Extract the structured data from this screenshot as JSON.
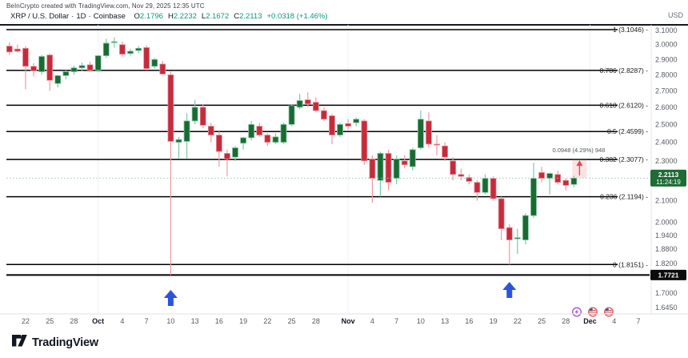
{
  "header": {
    "attribution": "BeInCrypto created with TradingView.com, Nov 29, 2025 12:35 UTC",
    "symbol_title": "XRP / U.S. Dollar",
    "interval": "1D",
    "exchange": "Coinbase",
    "o_label": "O",
    "o_value": "2.1796",
    "h_label": "H",
    "h_value": "2.2232",
    "l_label": "L",
    "l_value": "2.1672",
    "c_label": "C",
    "c_value": "2.2113",
    "change": "+0.0318 (+1.46%)",
    "currency_label": "USD"
  },
  "footer": {
    "logo_text": "TradingView"
  },
  "colors": {
    "up_body": "#1a6b33",
    "up_wick": "#7cc8a8",
    "up_border": "#7cc39b",
    "down_body": "#c62b3c",
    "down_wick": "#f0989f",
    "down_border": "#e9939d",
    "fib_line": "#000000",
    "fib_text": "#1a1a1a",
    "axis_text": "#555a63",
    "month_text": "#131722",
    "price_badge_bg": "#1e6b35",
    "level_badge_bg": "#0c0c0c",
    "dotted_price_line": "#9ccbad",
    "blue_arrow": "#2b54dd",
    "measure_fill": "rgba(239,83,80,0.16)",
    "measure_arrow": "#e24a52",
    "measure_text": "#55585f",
    "event_purple": "#a34fd4",
    "event_flag_red": "#e05c5c",
    "event_flag_blue": "#3557b0"
  },
  "chart_data": {
    "type": "candlestick",
    "title": "XRP / U.S. Dollar",
    "interval": "1D",
    "exchange": "Coinbase",
    "price_scale": "log",
    "ylim": [
      1.6,
      3.15
    ],
    "fib_levels": [
      {
        "level": "1",
        "price": "3.1046"
      },
      {
        "level": "0.786",
        "price": "2.8287"
      },
      {
        "level": "0.618",
        "price": "2.6120"
      },
      {
        "level": "0.5",
        "price": "2.4599"
      },
      {
        "level": "0.382",
        "price": "2.3077"
      },
      {
        "level": "0.236",
        "price": "2.1194"
      },
      {
        "level": "0",
        "price": "1.8151"
      }
    ],
    "horizontal_level": {
      "price": "1.7721"
    },
    "last_price": {
      "value": "2.2113",
      "countdown": "11:24:19"
    },
    "measure_annotation": {
      "text": "0.0948 (4.29%) 948",
      "from_price": 2.2129,
      "to_price": 2.3077,
      "bar": 70
    },
    "price_axis_ticks": [
      "3.1000",
      "3.0000",
      "2.9000",
      "2.8000",
      "2.7000",
      "2.6000",
      "2.5000",
      "2.4000",
      "2.3000",
      "2.1000",
      "2.0000",
      "1.9400",
      "1.8800",
      "1.8200",
      "1.7000",
      "1.6450"
    ],
    "time_axis_ticks": [
      {
        "label": "22",
        "bar": 2
      },
      {
        "label": "25",
        "bar": 5
      },
      {
        "label": "28",
        "bar": 8
      },
      {
        "label": "Oct",
        "bar": 11,
        "bold": true
      },
      {
        "label": "4",
        "bar": 14
      },
      {
        "label": "7",
        "bar": 17
      },
      {
        "label": "10",
        "bar": 20
      },
      {
        "label": "13",
        "bar": 23
      },
      {
        "label": "16",
        "bar": 26
      },
      {
        "label": "19",
        "bar": 29
      },
      {
        "label": "22",
        "bar": 32
      },
      {
        "label": "25",
        "bar": 35
      },
      {
        "label": "28",
        "bar": 38
      },
      {
        "label": "Nov",
        "bar": 42,
        "bold": true
      },
      {
        "label": "4",
        "bar": 45
      },
      {
        "label": "7",
        "bar": 48
      },
      {
        "label": "10",
        "bar": 51
      },
      {
        "label": "13",
        "bar": 54
      },
      {
        "label": "16",
        "bar": 57
      },
      {
        "label": "19",
        "bar": 60
      },
      {
        "label": "22",
        "bar": 63
      },
      {
        "label": "25",
        "bar": 66
      },
      {
        "label": "28",
        "bar": 69
      },
      {
        "label": "Dec",
        "bar": 72,
        "bold": true
      },
      {
        "label": "4",
        "bar": 75
      },
      {
        "label": "7",
        "bar": 78
      }
    ],
    "signal_arrows": [
      {
        "bar": 20,
        "top_y": 362,
        "date": "Oct 10"
      },
      {
        "bar": 62,
        "top_y": 352,
        "date": "Nov 21"
      }
    ],
    "event_markers": [
      {
        "type": "crypto-event",
        "x": 721
      },
      {
        "type": "us-flag-event",
        "x": 741
      },
      {
        "type": "us-flag-event",
        "x": 761
      }
    ],
    "candle_columns": [
      "date",
      "open",
      "high",
      "low",
      "close"
    ],
    "candles": [
      [
        "Sep 20",
        2.99,
        3.015,
        2.93,
        2.95
      ],
      [
        "Sep 21",
        2.97,
        3.0,
        2.945,
        2.955
      ],
      [
        "Sep 22",
        2.975,
        2.99,
        2.71,
        2.855
      ],
      [
        "Sep 23",
        2.855,
        2.875,
        2.79,
        2.825
      ],
      [
        "Sep 24",
        2.82,
        2.93,
        2.8,
        2.92
      ],
      [
        "Sep 25",
        2.93,
        2.94,
        2.7,
        2.765
      ],
      [
        "Sep 26",
        2.745,
        2.8,
        2.72,
        2.795
      ],
      [
        "Sep 27",
        2.795,
        2.83,
        2.77,
        2.82
      ],
      [
        "Sep 28",
        2.82,
        2.86,
        2.8,
        2.845
      ],
      [
        "Sep 29",
        2.845,
        2.88,
        2.825,
        2.86
      ],
      [
        "Sep 30",
        2.865,
        2.885,
        2.82,
        2.83
      ],
      [
        "Oct 1",
        2.83,
        2.93,
        2.82,
        2.925
      ],
      [
        "Oct 2",
        2.925,
        3.04,
        2.91,
        3.01
      ],
      [
        "Oct 3",
        3.015,
        3.05,
        2.98,
        3.02
      ],
      [
        "Oct 4",
        3.0,
        3.02,
        2.92,
        2.935
      ],
      [
        "Oct 5",
        2.94,
        2.97,
        2.925,
        2.955
      ],
      [
        "Oct 6",
        2.96,
        2.99,
        2.94,
        2.975
      ],
      [
        "Oct 7",
        2.98,
        2.995,
        2.83,
        2.84
      ],
      [
        "Oct 8",
        2.855,
        2.91,
        2.84,
        2.9
      ],
      [
        "Oct 9",
        2.87,
        2.89,
        2.8,
        2.805
      ],
      [
        "Oct 10",
        2.8,
        2.82,
        1.7721,
        2.405
      ],
      [
        "Oct 11",
        2.4,
        2.43,
        2.31,
        2.415
      ],
      [
        "Oct 12",
        2.405,
        2.565,
        2.31,
        2.52
      ],
      [
        "Oct 13",
        2.52,
        2.645,
        2.5,
        2.6
      ],
      [
        "Oct 14",
        2.6,
        2.62,
        2.48,
        2.495
      ],
      [
        "Oct 15",
        2.49,
        2.51,
        2.4,
        2.44
      ],
      [
        "Oct 16",
        2.44,
        2.46,
        2.27,
        2.35
      ],
      [
        "Oct 17",
        2.34,
        2.36,
        2.22,
        2.31
      ],
      [
        "Oct 18",
        2.32,
        2.38,
        2.3,
        2.37
      ],
      [
        "Oct 19",
        2.395,
        2.43,
        2.36,
        2.425
      ],
      [
        "Oct 20",
        2.425,
        2.52,
        2.41,
        2.5
      ],
      [
        "Oct 21",
        2.49,
        2.51,
        2.43,
        2.44
      ],
      [
        "Oct 22",
        2.44,
        2.45,
        2.38,
        2.4
      ],
      [
        "Oct 23",
        2.4,
        2.45,
        2.39,
        2.43
      ],
      [
        "Oct 24",
        2.4,
        2.51,
        2.39,
        2.5
      ],
      [
        "Oct 25",
        2.5,
        2.62,
        2.49,
        2.61
      ],
      [
        "Oct 26",
        2.6,
        2.68,
        2.59,
        2.64
      ],
      [
        "Oct 27",
        2.645,
        2.69,
        2.6,
        2.62
      ],
      [
        "Oct 28",
        2.63,
        2.66,
        2.57,
        2.58
      ],
      [
        "Oct 29",
        2.58,
        2.6,
        2.52,
        2.53
      ],
      [
        "Oct 30",
        2.55,
        2.56,
        2.39,
        2.44
      ],
      [
        "Oct 31",
        2.44,
        2.51,
        2.43,
        2.5
      ],
      [
        "Nov 1",
        2.505,
        2.53,
        2.47,
        2.49
      ],
      [
        "Nov 2",
        2.51,
        2.54,
        2.49,
        2.53
      ],
      [
        "Nov 3",
        2.52,
        2.53,
        2.28,
        2.3
      ],
      [
        "Nov 4",
        2.31,
        2.33,
        2.09,
        2.21
      ],
      [
        "Nov 5",
        2.2,
        2.35,
        2.12,
        2.34
      ],
      [
        "Nov 6",
        2.34,
        2.36,
        2.15,
        2.19
      ],
      [
        "Nov 7",
        2.21,
        2.33,
        2.18,
        2.31
      ],
      [
        "Nov 8",
        2.3,
        2.33,
        2.26,
        2.28
      ],
      [
        "Nov 9",
        2.27,
        2.37,
        2.25,
        2.36
      ],
      [
        "Nov 10",
        2.37,
        2.58,
        2.36,
        2.53
      ],
      [
        "Nov 11",
        2.52,
        2.57,
        2.37,
        2.39
      ],
      [
        "Nov 12",
        2.39,
        2.44,
        2.33,
        2.385
      ],
      [
        "Nov 13",
        2.38,
        2.4,
        2.3,
        2.32
      ],
      [
        "Nov 14",
        2.3,
        2.32,
        2.2,
        2.23
      ],
      [
        "Nov 15",
        2.23,
        2.26,
        2.2,
        2.22
      ],
      [
        "Nov 16",
        2.215,
        2.23,
        2.18,
        2.195
      ],
      [
        "Nov 17",
        2.19,
        2.2,
        2.1,
        2.14
      ],
      [
        "Nov 18",
        2.14,
        2.23,
        2.13,
        2.21
      ],
      [
        "Nov 19",
        2.21,
        2.22,
        2.1,
        2.11
      ],
      [
        "Nov 20",
        2.11,
        2.12,
        1.92,
        1.97
      ],
      [
        "Nov 21",
        1.975,
        1.99,
        1.8151,
        1.92
      ],
      [
        "Nov 22",
        1.925,
        1.97,
        1.86,
        1.93
      ],
      [
        "Nov 23",
        1.92,
        2.04,
        1.9,
        2.03
      ],
      [
        "Nov 24",
        2.03,
        2.29,
        2.02,
        2.21
      ],
      [
        "Nov 25",
        2.24,
        2.27,
        2.19,
        2.21
      ],
      [
        "Nov 26",
        2.21,
        2.24,
        2.13,
        2.235
      ],
      [
        "Nov 27",
        2.23,
        2.25,
        2.18,
        2.19
      ],
      [
        "Nov 28",
        2.2,
        2.21,
        2.15,
        2.175
      ],
      [
        "Nov 29",
        2.1796,
        2.2232,
        2.1672,
        2.2113
      ]
    ]
  }
}
